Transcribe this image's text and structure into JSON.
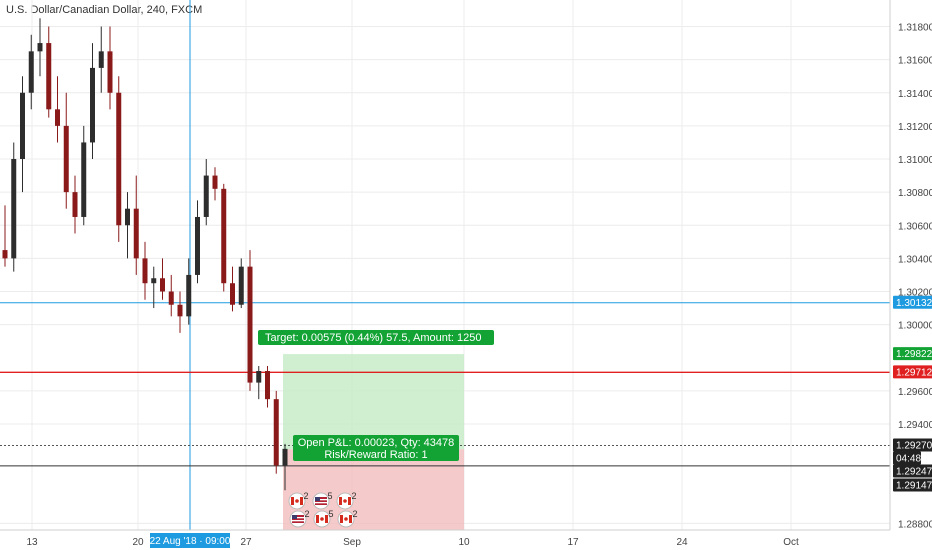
{
  "chart_title": "U.S. Dollar/Canadian Dollar, 240, FXCM",
  "colors": {
    "up": "#2d2d2d",
    "down": "#8a1a1a",
    "crosshair": "#1e9be0",
    "red_line": "#e02020",
    "target_green": "#13a334",
    "stop_red": "#f2b8b8",
    "profit_fill": "#c8ebc8",
    "axis_text": "#444444",
    "grid": "#ececec"
  },
  "crosshair": {
    "x_label": "22 Aug '18 · 09:00",
    "price_label": "1.30132"
  },
  "position": {
    "target_label": "Target: 0.00575 (0.44%) 57.5, Amount: 1250",
    "pl_line1": "Open P&L: 0.00023, Qty: 43478",
    "pl_line2": "Risk/Reward Ratio: 1"
  },
  "price_tags": [
    {
      "label": "1.30132",
      "price": 1.30132,
      "style": "blue"
    },
    {
      "label": "1.29822",
      "price": 1.29822,
      "style": "green"
    },
    {
      "label": "1.29712",
      "price": 1.29712,
      "style": "red"
    },
    {
      "label": "1.29270",
      "price": 1.2927,
      "style": "dark"
    },
    {
      "label": "04:48",
      "price": 1.29247,
      "style": "dark-small"
    },
    {
      "label": "1.29247",
      "price": 1.29247,
      "style": "dark"
    },
    {
      "label": "1.29147",
      "price": 1.29147,
      "style": "dark"
    }
  ],
  "events": {
    "row1": [
      {
        "flag": "CA",
        "count": "2"
      },
      {
        "flag": "US",
        "count": "5"
      },
      {
        "flag": "CA",
        "count": "2"
      }
    ],
    "row2": [
      {
        "flag": "US",
        "count": "2"
      },
      {
        "flag": "CA",
        "count": "5"
      },
      {
        "flag": "CA",
        "count": "2"
      }
    ]
  },
  "chart_data": {
    "type": "candlestick",
    "title": "U.S. Dollar/Canadian Dollar, 240, FXCM",
    "y_ticks": [
      "1.31800",
      "1.31600",
      "1.31400",
      "1.31200",
      "1.31000",
      "1.30800",
      "1.30600",
      "1.30400",
      "1.30200",
      "1.30000",
      "1.29600",
      "1.29400",
      "1.28800"
    ],
    "y_tick_values": [
      1.318,
      1.316,
      1.314,
      1.312,
      1.31,
      1.308,
      1.306,
      1.304,
      1.302,
      1.3,
      1.296,
      1.294,
      1.288
    ],
    "ylim": [
      1.2876,
      1.3196
    ],
    "x_ticks": [
      "13",
      "20",
      "27",
      "Sep",
      "10",
      "17",
      "24",
      "Oct"
    ],
    "candles": [
      {
        "o": 1.3045,
        "h": 1.3072,
        "l": 1.3035,
        "c": 1.304
      },
      {
        "o": 1.304,
        "h": 1.311,
        "l": 1.3032,
        "c": 1.31
      },
      {
        "o": 1.31,
        "h": 1.315,
        "l": 1.308,
        "c": 1.314
      },
      {
        "o": 1.314,
        "h": 1.3175,
        "l": 1.313,
        "c": 1.3165
      },
      {
        "o": 1.3165,
        "h": 1.3185,
        "l": 1.315,
        "c": 1.317
      },
      {
        "o": 1.317,
        "h": 1.318,
        "l": 1.3125,
        "c": 1.313
      },
      {
        "o": 1.313,
        "h": 1.315,
        "l": 1.311,
        "c": 1.312
      },
      {
        "o": 1.312,
        "h": 1.314,
        "l": 1.307,
        "c": 1.308
      },
      {
        "o": 1.308,
        "h": 1.309,
        "l": 1.3055,
        "c": 1.3065
      },
      {
        "o": 1.3065,
        "h": 1.312,
        "l": 1.306,
        "c": 1.311
      },
      {
        "o": 1.311,
        "h": 1.317,
        "l": 1.31,
        "c": 1.3155
      },
      {
        "o": 1.3155,
        "h": 1.318,
        "l": 1.314,
        "c": 1.3165
      },
      {
        "o": 1.3165,
        "h": 1.318,
        "l": 1.313,
        "c": 1.314
      },
      {
        "o": 1.314,
        "h": 1.315,
        "l": 1.305,
        "c": 1.306
      },
      {
        "o": 1.306,
        "h": 1.308,
        "l": 1.304,
        "c": 1.307
      },
      {
        "o": 1.307,
        "h": 1.309,
        "l": 1.303,
        "c": 1.304
      },
      {
        "o": 1.304,
        "h": 1.305,
        "l": 1.3015,
        "c": 1.3025
      },
      {
        "o": 1.3025,
        "h": 1.3035,
        "l": 1.301,
        "c": 1.3028
      },
      {
        "o": 1.3028,
        "h": 1.304,
        "l": 1.3015,
        "c": 1.302
      },
      {
        "o": 1.302,
        "h": 1.303,
        "l": 1.3005,
        "c": 1.3012
      },
      {
        "o": 1.3012,
        "h": 1.302,
        "l": 1.2995,
        "c": 1.3005
      },
      {
        "o": 1.3005,
        "h": 1.304,
        "l": 1.3,
        "c": 1.303
      },
      {
        "o": 1.303,
        "h": 1.3075,
        "l": 1.3025,
        "c": 1.3065
      },
      {
        "o": 1.3065,
        "h": 1.31,
        "l": 1.306,
        "c": 1.309
      },
      {
        "o": 1.309,
        "h": 1.3095,
        "l": 1.3075,
        "c": 1.3082
      },
      {
        "o": 1.3082,
        "h": 1.3085,
        "l": 1.302,
        "c": 1.3025
      },
      {
        "o": 1.3025,
        "h": 1.3035,
        "l": 1.3008,
        "c": 1.3012
      },
      {
        "o": 1.3012,
        "h": 1.304,
        "l": 1.301,
        "c": 1.3035
      },
      {
        "o": 1.3035,
        "h": 1.3045,
        "l": 1.296,
        "c": 1.2965
      },
      {
        "o": 1.2965,
        "h": 1.2975,
        "l": 1.2955,
        "c": 1.2972
      },
      {
        "o": 1.2972,
        "h": 1.2975,
        "l": 1.295,
        "c": 1.2955
      },
      {
        "o": 1.2955,
        "h": 1.296,
        "l": 1.291,
        "c": 1.2915
      },
      {
        "o": 1.2915,
        "h": 1.2928,
        "l": 1.29,
        "c": 1.2925
      }
    ]
  }
}
